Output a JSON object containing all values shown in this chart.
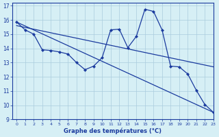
{
  "bg_color": "#d6eff5",
  "line_color": "#1a3a9e",
  "grid_color": "#aaccdd",
  "xlabel": "Graphe des températures (°C)",
  "xlim": [
    -0.5,
    23
  ],
  "ylim": [
    9,
    17.2
  ],
  "yticks": [
    9,
    10,
    11,
    12,
    13,
    14,
    15,
    16,
    17
  ],
  "xticks": [
    0,
    1,
    2,
    3,
    4,
    5,
    6,
    7,
    8,
    9,
    10,
    11,
    12,
    13,
    14,
    15,
    16,
    17,
    18,
    19,
    20,
    21,
    22,
    23
  ],
  "trend1_x": [
    0,
    23
  ],
  "trend1_y": [
    15.85,
    9.5
  ],
  "trend2_x": [
    0,
    23
  ],
  "trend2_y": [
    15.6,
    12.7
  ],
  "data_x": [
    0,
    1,
    2,
    3,
    4,
    5,
    6,
    7,
    8,
    9,
    10,
    11,
    12,
    13,
    14,
    15,
    16,
    17,
    18,
    19,
    20,
    21,
    22,
    23
  ],
  "data_y": [
    15.85,
    15.3,
    15.0,
    13.9,
    13.85,
    13.75,
    13.6,
    13.0,
    12.5,
    12.75,
    13.35,
    15.3,
    15.35,
    14.05,
    14.85,
    16.75,
    16.6,
    15.3,
    12.75,
    12.7,
    12.2,
    11.05,
    10.05,
    9.5
  ]
}
